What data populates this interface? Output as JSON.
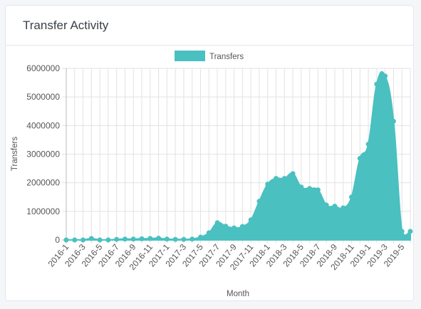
{
  "card": {
    "title": "Transfer Activity"
  },
  "colors": {
    "fill": "#4bc0c0",
    "grid": "#e2e2e2",
    "axis": "#bbbbbb"
  },
  "chart_data": {
    "type": "area",
    "title": "",
    "legend": {
      "position": "top",
      "entries": [
        "Transfers"
      ]
    },
    "xlabel": "Month",
    "ylabel": "Transfers",
    "ylim": [
      0,
      6000000
    ],
    "yticks": [
      0,
      1000000,
      2000000,
      3000000,
      4000000,
      5000000,
      6000000
    ],
    "grid": true,
    "x": [
      "2016-1",
      "2016-2",
      "2016-3",
      "2016-4",
      "2016-5",
      "2016-6",
      "2016-7",
      "2016-8",
      "2016-9",
      "2016-10",
      "2016-11",
      "2016-12",
      "2017-1",
      "2017-2",
      "2017-3",
      "2017-4",
      "2017-5",
      "2017-6",
      "2017-7",
      "2017-8",
      "2017-9",
      "2017-10",
      "2017-11",
      "2017-12",
      "2018-1",
      "2018-2",
      "2018-3",
      "2018-4",
      "2018-5",
      "2018-6",
      "2018-7",
      "2018-8",
      "2018-9",
      "2018-10",
      "2018-11",
      "2018-12",
      "2019-1",
      "2019-2",
      "2019-3",
      "2019-4",
      "2019-5",
      "2019-6"
    ],
    "xtick_labels": [
      "2016-1",
      "2016-3",
      "2016-5",
      "2016-7",
      "2016-9",
      "2016-11",
      "2017-1",
      "2017-3",
      "2017-5",
      "2017-7",
      "2017-9",
      "2017-11",
      "2018-1",
      "2018-3",
      "2018-5",
      "2018-7",
      "2018-9",
      "2018-11",
      "2019-1",
      "2019-3",
      "2019-5"
    ],
    "series": [
      {
        "name": "Transfers",
        "values": [
          0,
          0,
          0,
          50000,
          0,
          0,
          20000,
          30000,
          30000,
          40000,
          50000,
          60000,
          30000,
          20000,
          20000,
          30000,
          100000,
          250000,
          600000,
          480000,
          420000,
          470000,
          700000,
          1350000,
          1950000,
          2150000,
          2150000,
          2320000,
          1850000,
          1800000,
          1750000,
          1220000,
          1180000,
          1120000,
          1500000,
          2850000,
          3350000,
          5450000,
          5730000,
          4150000,
          300000,
          300000
        ]
      }
    ]
  }
}
